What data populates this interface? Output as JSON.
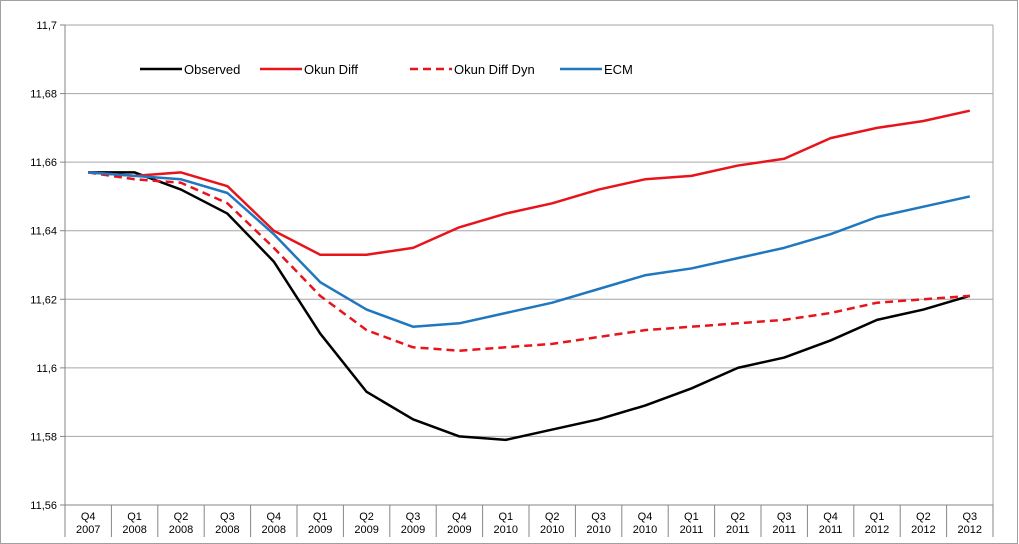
{
  "chart_data": {
    "type": "line",
    "categories": [
      "Q4 2007",
      "Q1 2008",
      "Q2 2008",
      "Q3 2008",
      "Q4 2008",
      "Q1 2009",
      "Q2 2009",
      "Q3 2009",
      "Q4 2009",
      "Q1 2010",
      "Q2 2010",
      "Q3 2010",
      "Q4 2010",
      "Q1 2011",
      "Q2 2011",
      "Q3 2011",
      "Q4 2011",
      "Q1 2012",
      "Q2 2012",
      "Q3 2012"
    ],
    "series": [
      {
        "name": "Observed",
        "color": "#000000",
        "style": "solid",
        "values": [
          11.657,
          11.657,
          11.652,
          11.645,
          11.631,
          11.61,
          11.593,
          11.585,
          11.58,
          11.579,
          11.582,
          11.585,
          11.589,
          11.594,
          11.6,
          11.603,
          11.608,
          11.614,
          11.617,
          11.621
        ]
      },
      {
        "name": "Okun Diff",
        "color": "#e8141c",
        "style": "solid",
        "values": [
          11.657,
          11.656,
          11.657,
          11.653,
          11.64,
          11.633,
          11.633,
          11.635,
          11.641,
          11.645,
          11.648,
          11.652,
          11.655,
          11.656,
          11.659,
          11.661,
          11.667,
          11.67,
          11.672,
          11.675
        ]
      },
      {
        "name": "Okun Diff Dyn",
        "color": "#e8141c",
        "style": "dashed",
        "values": [
          11.657,
          11.655,
          11.654,
          11.648,
          11.635,
          11.621,
          11.611,
          11.606,
          11.605,
          11.606,
          11.607,
          11.609,
          11.611,
          11.612,
          11.613,
          11.614,
          11.616,
          11.619,
          11.62,
          11.621
        ]
      },
      {
        "name": "ECM",
        "color": "#1f77c0",
        "style": "solid",
        "values": [
          11.657,
          11.656,
          11.655,
          11.651,
          11.639,
          11.625,
          11.617,
          11.612,
          11.613,
          11.616,
          11.619,
          11.623,
          11.627,
          11.629,
          11.632,
          11.635,
          11.639,
          11.644,
          11.647,
          11.65
        ]
      }
    ],
    "ylim": [
      11.56,
      11.7
    ],
    "yticks": [
      {
        "value": 11.56,
        "label": "11,56"
      },
      {
        "value": 11.58,
        "label": "11,58"
      },
      {
        "value": 11.6,
        "label": "11,6"
      },
      {
        "value": 11.62,
        "label": "11,62"
      },
      {
        "value": 11.64,
        "label": "11,64"
      },
      {
        "value": 11.66,
        "label": "11,66"
      },
      {
        "value": 11.68,
        "label": "11,68"
      },
      {
        "value": 11.7,
        "label": "11,7"
      }
    ],
    "grid": true,
    "legend": "top"
  }
}
